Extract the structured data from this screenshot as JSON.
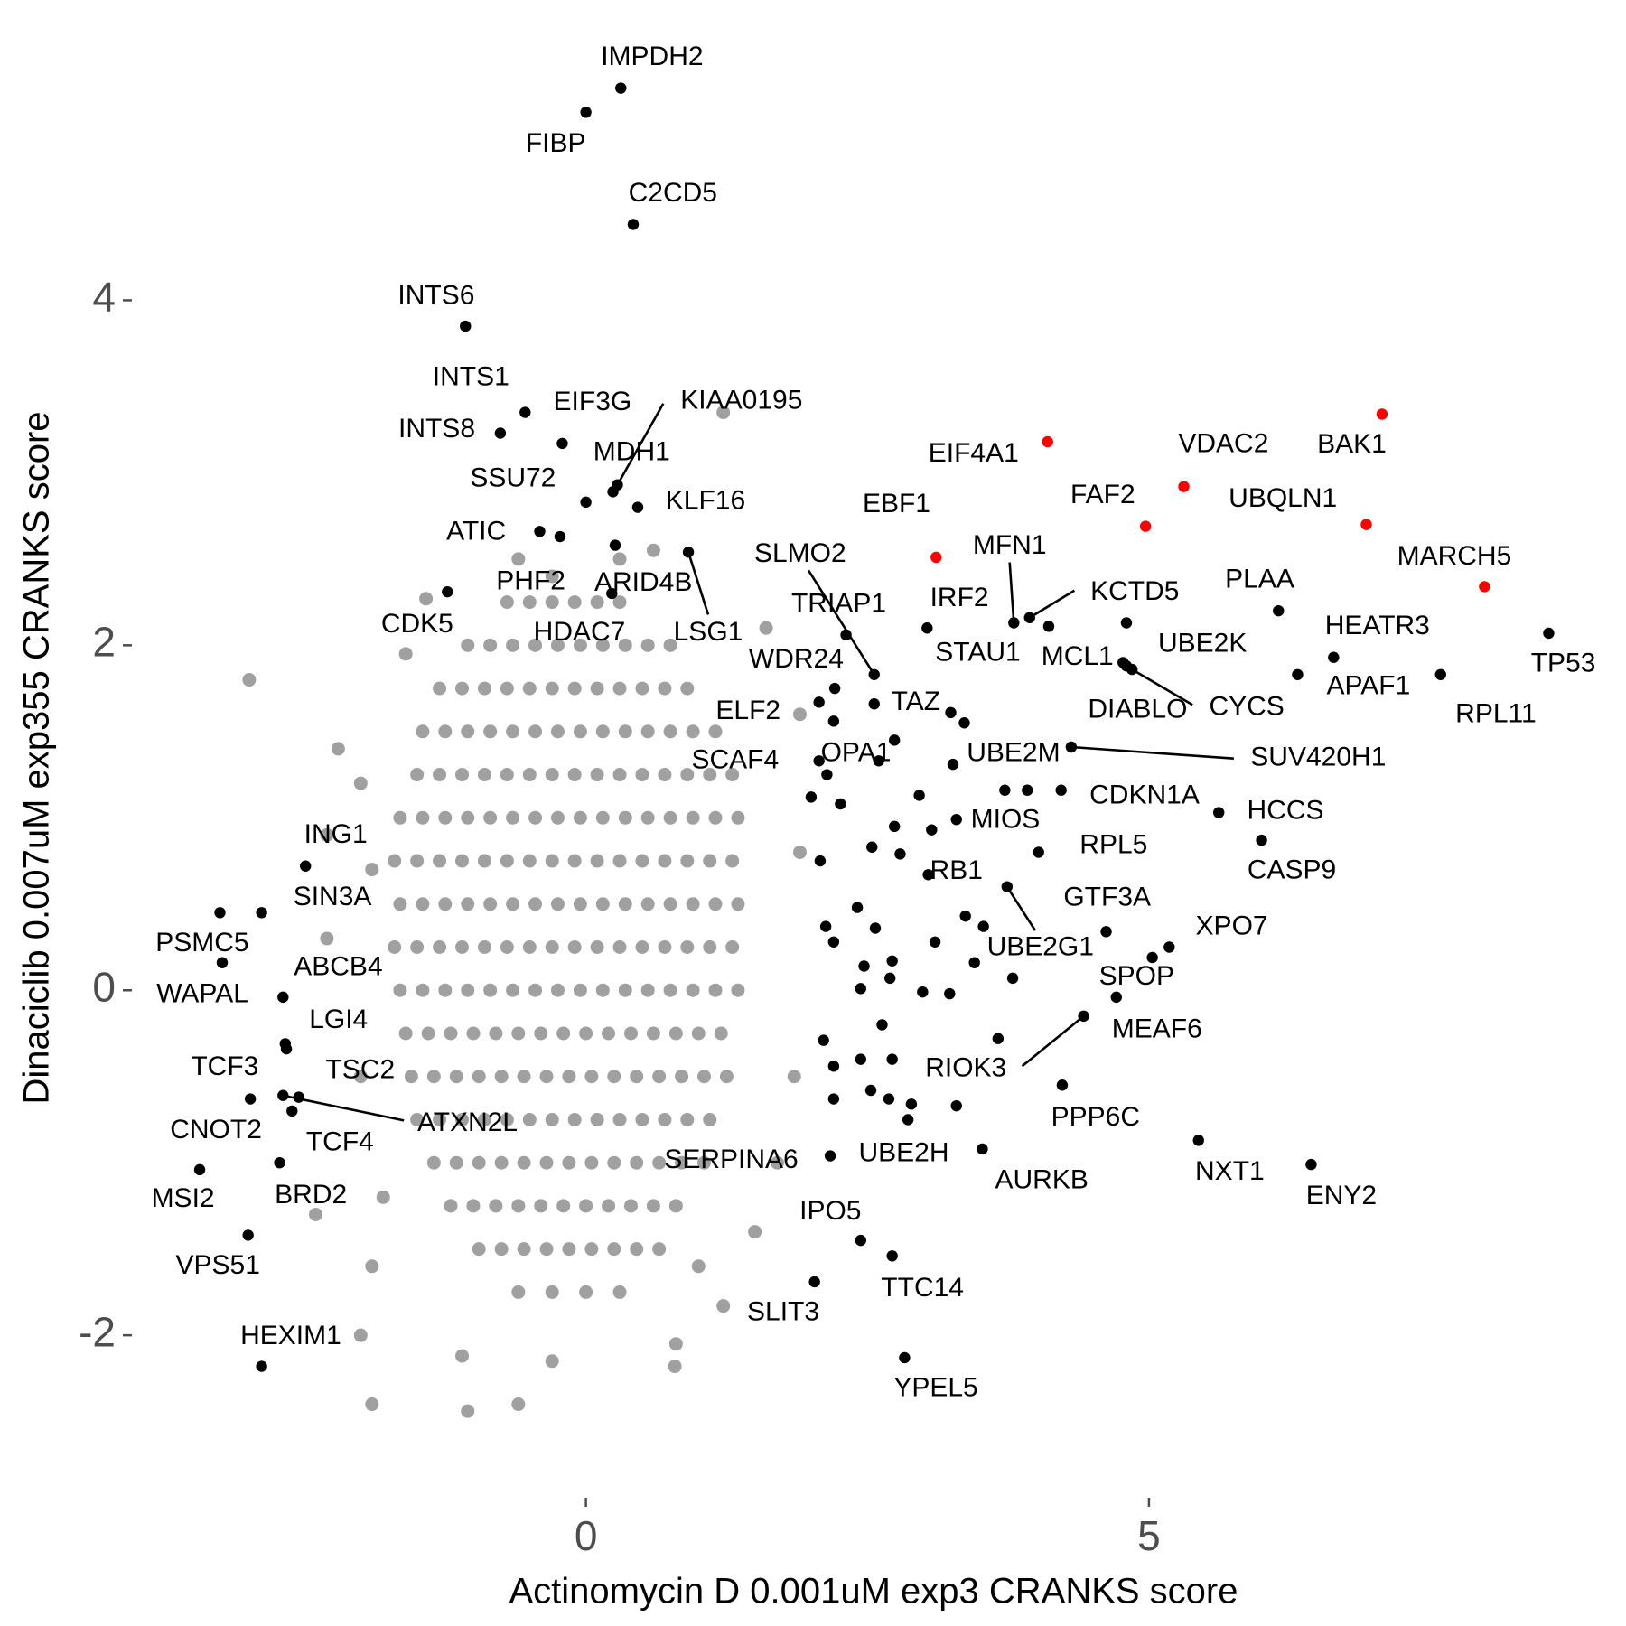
{
  "chart_data": {
    "type": "scatter",
    "x_label": "Actinomycin D 0.001uM exp3 CRANKS score",
    "y_label": "Dinaciclib 0.007uM exp355 CRANKS score",
    "xlim": [
      -4.0,
      9.1
    ],
    "ylim": [
      -2.9,
      5.5
    ],
    "xticks": [
      0,
      5
    ],
    "yticks": [
      -2,
      0,
      2,
      4
    ],
    "grid": false,
    "series": [
      {
        "color": "#a0a0a0",
        "x": [
          -0.7,
          -0.5,
          -0.3,
          -0.1,
          0.1,
          0.3,
          -1.05,
          -0.85,
          -0.65,
          -0.45,
          -0.25,
          -0.05,
          0.15,
          0.35,
          0.55,
          0.75,
          -1.3,
          -1.1,
          -0.9,
          -0.7,
          -0.5,
          -0.3,
          -0.1,
          0.1,
          0.3,
          0.5,
          0.7,
          0.9,
          -1.45,
          -1.25,
          -1.05,
          -0.85,
          -0.65,
          -0.45,
          -0.25,
          -0.05,
          0.15,
          0.35,
          0.55,
          0.75,
          0.95,
          1.15,
          -1.5,
          -1.3,
          -1.1,
          -0.9,
          -0.7,
          -0.5,
          -0.3,
          -0.1,
          0.1,
          0.3,
          0.5,
          0.7,
          0.9,
          1.1,
          1.3,
          -1.65,
          -1.45,
          -1.25,
          -1.05,
          -0.85,
          -0.65,
          -0.45,
          -0.25,
          -0.05,
          0.15,
          0.35,
          0.55,
          0.75,
          0.95,
          1.15,
          1.35,
          -1.7,
          -1.5,
          -1.3,
          -1.1,
          -0.9,
          -0.7,
          -0.5,
          -0.3,
          -0.1,
          0.1,
          0.3,
          0.5,
          0.7,
          0.9,
          1.1,
          1.3,
          -1.65,
          -1.45,
          -1.25,
          -1.05,
          -0.85,
          -0.65,
          -0.45,
          -0.25,
          -0.05,
          0.15,
          0.35,
          0.55,
          0.75,
          0.95,
          1.15,
          1.35,
          -1.7,
          -1.5,
          -1.3,
          -1.1,
          -0.9,
          -0.7,
          -0.5,
          -0.3,
          -0.1,
          0.1,
          0.3,
          0.5,
          0.7,
          0.9,
          1.1,
          1.3,
          -1.65,
          -1.45,
          -1.25,
          -1.05,
          -0.85,
          -0.65,
          -0.45,
          -0.25,
          -0.05,
          0.15,
          0.35,
          0.55,
          0.75,
          0.95,
          1.15,
          1.35,
          -1.6,
          -1.4,
          -1.2,
          -1.0,
          -0.8,
          -0.6,
          -0.4,
          -0.2,
          0,
          0.2,
          0.4,
          0.6,
          0.8,
          1.0,
          1.2,
          -1.55,
          -1.35,
          -1.15,
          -0.95,
          -0.75,
          -0.55,
          -0.35,
          -0.15,
          0.05,
          0.25,
          0.45,
          0.65,
          0.85,
          1.05,
          1.25,
          -1.5,
          -1.3,
          -1.1,
          -0.9,
          -0.7,
          -0.5,
          -0.3,
          -0.1,
          0.1,
          0.3,
          0.5,
          0.7,
          0.9,
          1.1,
          -1.35,
          -1.15,
          -0.95,
          -0.75,
          -0.55,
          -0.35,
          -0.15,
          0.05,
          0.25,
          0.45,
          0.65,
          0.85,
          1.05,
          -1.2,
          -1.0,
          -0.8,
          -0.6,
          -0.4,
          -0.2,
          0,
          0.2,
          0.4,
          0.6,
          0.8,
          -0.95,
          -0.75,
          -0.55,
          -0.35,
          -0.15,
          0.05,
          0.25,
          0.45,
          0.65,
          -0.6,
          -0.3,
          0,
          0.3,
          -2.99,
          -1.42,
          -1.6,
          -2.0,
          -2.2,
          -1.9,
          -2.3,
          -2.0,
          -1.8,
          -1.9,
          -2.0,
          -1.1,
          -0.3,
          -0.6,
          -1.05,
          -1.9,
          0.8,
          1.22,
          0.79,
          1.22,
          0.6,
          1.6,
          1.9,
          1.9,
          1.85,
          1.7,
          1.5,
          1.0,
          -2.4,
          -2.3,
          -0.6,
          -0.3,
          0.3
        ],
        "values": [
          2.25,
          2.25,
          2.25,
          2.25,
          2.25,
          2.25,
          2,
          2,
          2,
          2,
          2,
          2,
          2,
          2,
          2,
          2,
          1.75,
          1.75,
          1.75,
          1.75,
          1.75,
          1.75,
          1.75,
          1.75,
          1.75,
          1.75,
          1.75,
          1.75,
          1.5,
          1.5,
          1.5,
          1.5,
          1.5,
          1.5,
          1.5,
          1.5,
          1.5,
          1.5,
          1.5,
          1.5,
          1.5,
          1.5,
          1.25,
          1.25,
          1.25,
          1.25,
          1.25,
          1.25,
          1.25,
          1.25,
          1.25,
          1.25,
          1.25,
          1.25,
          1.25,
          1.25,
          1.25,
          1,
          1,
          1,
          1,
          1,
          1,
          1,
          1,
          1,
          1,
          1,
          1,
          1,
          1,
          1,
          1,
          0.75,
          0.75,
          0.75,
          0.75,
          0.75,
          0.75,
          0.75,
          0.75,
          0.75,
          0.75,
          0.75,
          0.75,
          0.75,
          0.75,
          0.75,
          0.75,
          0.5,
          0.5,
          0.5,
          0.5,
          0.5,
          0.5,
          0.5,
          0.5,
          0.5,
          0.5,
          0.5,
          0.5,
          0.5,
          0.5,
          0.5,
          0.5,
          0.25,
          0.25,
          0.25,
          0.25,
          0.25,
          0.25,
          0.25,
          0.25,
          0.25,
          0.25,
          0.25,
          0.25,
          0.25,
          0.25,
          0.25,
          0.25,
          0,
          0,
          0,
          0,
          0,
          0,
          0,
          0,
          0,
          0,
          0,
          0,
          0,
          0,
          0,
          0,
          -0.25,
          -0.25,
          -0.25,
          -0.25,
          -0.25,
          -0.25,
          -0.25,
          -0.25,
          -0.25,
          -0.25,
          -0.25,
          -0.25,
          -0.25,
          -0.25,
          -0.25,
          -0.5,
          -0.5,
          -0.5,
          -0.5,
          -0.5,
          -0.5,
          -0.5,
          -0.5,
          -0.5,
          -0.5,
          -0.5,
          -0.5,
          -0.5,
          -0.5,
          -0.5,
          -0.75,
          -0.75,
          -0.75,
          -0.75,
          -0.75,
          -0.75,
          -0.75,
          -0.75,
          -0.75,
          -0.75,
          -0.75,
          -0.75,
          -0.75,
          -0.75,
          -1,
          -1,
          -1,
          -1,
          -1,
          -1,
          -1,
          -1,
          -1,
          -1,
          -1,
          -1,
          -1,
          -1.25,
          -1.25,
          -1.25,
          -1.25,
          -1.25,
          -1.25,
          -1.25,
          -1.25,
          -1.25,
          -1.25,
          -1.25,
          -1.5,
          -1.5,
          -1.5,
          -1.5,
          -1.5,
          -1.5,
          -1.5,
          -1.5,
          -1.5,
          -1.75,
          -1.75,
          -1.75,
          -1.75,
          1.8,
          2.27,
          1.95,
          1.2,
          1.4,
          0.7,
          0.3,
          -0.5,
          -1.2,
          -1.6,
          -2.0,
          -2.12,
          -2.15,
          -2.4,
          -2.44,
          -2.4,
          -2.05,
          -1.83,
          -2.18,
          3.35,
          2.55,
          2.1,
          1.6,
          0.8,
          -0.5,
          -1.0,
          -1.4,
          -1.6,
          -1.3,
          0.9,
          2.5,
          2.4,
          2.5
        ]
      },
      {
        "color": "#000000",
        "labels": [
          "IMPDH2",
          "FIBP",
          "C2CD5",
          "INTS6",
          "INTS1",
          "INTS8",
          "EIF3G",
          "KIAA0195",
          "MDH1",
          "SSU72",
          "KLF16",
          "ATIC",
          "PHF2",
          "ARID4B",
          "HDAC7",
          "CDK5",
          "LSG1",
          "SLMO2",
          "TRIAP1",
          "WDR24",
          "ELF2",
          "TAZ",
          "OPA1",
          "SCAF4",
          "IRF2",
          "MFN1",
          "KCTD5",
          "STAU1",
          "UBE2K",
          "MCL1",
          "DIABLO",
          "CYCS",
          "PLAA",
          "HEATR3",
          "APAF1",
          "RPL11",
          "TP53",
          "UBE2M",
          "SUV420H1",
          "CDKN1A",
          "HCCS",
          "CASP9",
          "MIOS",
          "RPL5",
          "RB1",
          "GTF3A",
          "UBE2G1",
          "XPO7",
          "SPOP",
          "MEAF6",
          "RIOK3",
          "PPP6C",
          "AURKB",
          "SERPINA6",
          "UBE2H",
          "NXT1",
          "ENY2",
          "IPO5",
          "TTC14",
          "SLIT3",
          "YPEL5",
          "ING1",
          "SIN3A",
          "PSMC5",
          "WAPAL",
          "ABCB4",
          "LGI4",
          "TCF3",
          "TSC2",
          "ATXN2L",
          "TCF4",
          "CNOT2",
          "MSI2",
          "BRD2",
          "VPS51",
          "HEXIM1",
          null,
          null,
          null,
          null,
          null,
          null,
          null,
          null,
          null,
          null,
          null,
          null,
          null,
          null,
          null,
          null,
          null,
          null,
          null,
          null,
          null,
          null,
          null,
          null,
          null,
          null,
          null,
          null,
          null,
          null,
          null,
          null,
          null,
          null,
          null,
          null,
          null,
          null,
          null,
          null,
          null
        ],
        "x": [
          0.31,
          0.0,
          0.42,
          -1.07,
          -0.54,
          -0.76,
          -0.21,
          0.28,
          0.24,
          0.0,
          0.46,
          -0.41,
          -0.23,
          0.26,
          0.23,
          -1.23,
          0.91,
          2.56,
          2.31,
          2.21,
          2.2,
          2.56,
          2.74,
          2.14,
          3.03,
          3.8,
          3.94,
          4.11,
          4.8,
          4.8,
          4.77,
          4.85,
          6.15,
          6.64,
          6.32,
          7.59,
          8.55,
          3.26,
          4.31,
          4.22,
          5.62,
          6.0,
          3.29,
          4.02,
          3.04,
          4.62,
          3.74,
          5.18,
          5.03,
          4.71,
          4.42,
          4.23,
          3.52,
          2.17,
          2.86,
          5.44,
          6.44,
          2.44,
          2.72,
          2.03,
          2.83,
          -2.49,
          -2.88,
          -3.25,
          -3.23,
          -2.69,
          -2.66,
          -2.67,
          -2.55,
          -2.69,
          -2.61,
          -2.98,
          -3.43,
          -2.72,
          -3.0,
          -2.88,
          2.07,
          2.0,
          2.26,
          2.08,
          2.13,
          2.11,
          2.2,
          2.2,
          2.41,
          2.54,
          2.57,
          2.74,
          2.47,
          2.44,
          2.7,
          2.72,
          2.63,
          2.44,
          2.53,
          2.69,
          2.89,
          2.72,
          2.96,
          3.36,
          3.24,
          2.79,
          3.1,
          2.99,
          3.23,
          3.29,
          3.37,
          3.53,
          3.45,
          3.79,
          3.72,
          3.92,
          3.07,
          2.6,
          3.66,
          2.07,
          2.2
        ],
        "values": [
          5.23,
          5.09,
          4.44,
          3.85,
          3.35,
          3.23,
          3.17,
          2.93,
          2.89,
          2.83,
          2.8,
          2.66,
          2.63,
          2.58,
          2.3,
          2.31,
          2.54,
          1.83,
          2.06,
          1.75,
          1.56,
          1.66,
          1.45,
          1.25,
          2.1,
          2.13,
          2.16,
          2.11,
          2.13,
          1.88,
          1.9,
          1.86,
          2.2,
          1.93,
          1.83,
          1.83,
          2.07,
          1.31,
          1.41,
          1.16,
          1.03,
          0.87,
          0.99,
          0.8,
          0.67,
          0.34,
          0.6,
          0.25,
          0.19,
          -0.04,
          -0.15,
          -0.55,
          -0.92,
          -0.96,
          -0.75,
          -0.87,
          -1.01,
          -1.45,
          -1.54,
          -1.69,
          -2.13,
          0.72,
          0.45,
          0.45,
          0.16,
          -0.04,
          -0.34,
          -0.31,
          -0.62,
          -0.61,
          -0.7,
          -0.63,
          -1.04,
          -1.0,
          -1.42,
          -2.18,
          1.67,
          1.12,
          1.08,
          0.75,
          0.37,
          -0.29,
          -0.44,
          -0.63,
          0.48,
          0.83,
          0.36,
          0.95,
          0.14,
          0.01,
          0.07,
          0.17,
          -0.2,
          -0.4,
          -0.58,
          -0.63,
          -0.66,
          -0.4,
          1.13,
          1.55,
          1.61,
          0.79,
          0.28,
          -0.01,
          -0.02,
          -0.67,
          0.43,
          0.37,
          0.16,
          0.07,
          1.16,
          1.16,
          0.93,
          1.33,
          -0.28,
          1.33,
          0.28
        ]
      },
      {
        "color": "#ff0000",
        "labels": [
          "BAK1",
          "EIF4A1",
          "VDAC2",
          "FAF2",
          "UBQLN1",
          "MARCH5",
          "EBF1"
        ],
        "x": [
          7.07,
          4.1,
          5.31,
          4.97,
          6.93,
          7.98,
          3.11
        ],
        "values": [
          3.34,
          3.18,
          2.92,
          2.69,
          2.7,
          2.34,
          2.51
        ]
      }
    ]
  }
}
